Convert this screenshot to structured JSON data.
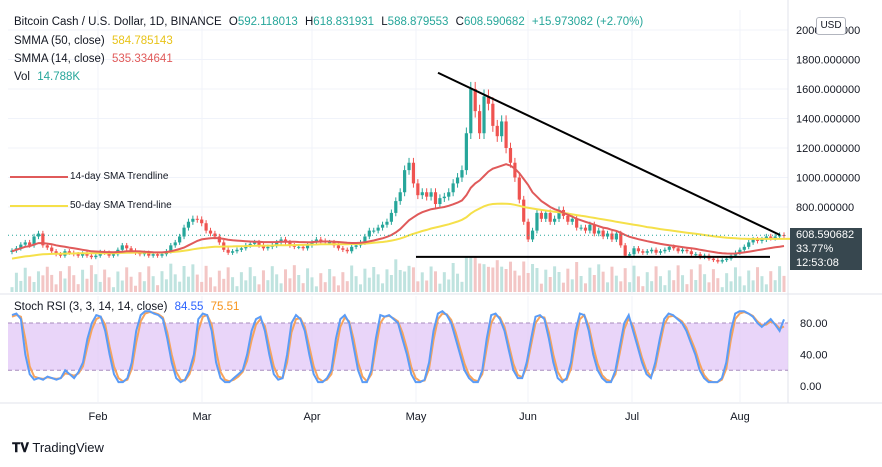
{
  "header": {
    "symbol": "Bitcoin Cash / U.S. Dollar, 1D, BINANCE",
    "o_label": "O",
    "o_value": "592.118013",
    "h_label": "H",
    "h_value": "618.831931",
    "l_label": "L",
    "l_value": "588.879553",
    "c_label": "C",
    "c_value": "608.590682",
    "change": "+15.973082 (+2.70%)",
    "smma50_label": "SMMA (50, close)",
    "smma50_value": "584.785143",
    "smma14_label": "SMMA (14, close)",
    "smma14_value": "535.334641",
    "vol_label": "Vol",
    "vol_value": "14.788K",
    "stoch_label": "Stoch RSI (3, 3, 14, 14, close)",
    "stoch_k": "84.55",
    "stoch_d": "75.51"
  },
  "currency_button": "USD",
  "price_tag": {
    "price": "608.590682",
    "pct": "33.77%",
    "time": "12:53:08"
  },
  "annotations": {
    "sma14": "14-day SMA Trendline",
    "sma50": "50-day SMA Trend-line"
  },
  "branding": {
    "logo_text": "TradingView"
  },
  "colors": {
    "up": "#26a69a",
    "down": "#ef5350",
    "smma14": "#e05a5a",
    "smma50": "#f5e04a",
    "stoch_k": "#5b9cf6",
    "stoch_d": "#f7a35c",
    "stoch_band": "#e1c7f7",
    "tag": "#37474f"
  },
  "chart_data": [
    {
      "type": "candlestick",
      "x_tick_labels": [
        "Feb",
        "Mar",
        "Apr",
        "May",
        "Jun",
        "Jul",
        "Aug"
      ],
      "y_tick_labels": [
        "2000.000000",
        "1800.000000",
        "1600.000000",
        "1400.000000",
        "1200.000000",
        "1000.000000",
        "800.000000"
      ],
      "ylim": [
        350,
        2050
      ],
      "last_price": 608.59,
      "close": [
        505,
        520,
        545,
        560,
        540,
        600,
        620,
        540,
        525,
        500,
        480,
        470,
        500,
        490,
        480,
        470,
        485,
        470,
        460,
        470,
        495,
        490,
        470,
        480,
        510,
        540,
        520,
        505,
        490,
        480,
        490,
        470,
        480,
        470,
        480,
        500,
        540,
        560,
        600,
        660,
        700,
        720,
        715,
        690,
        640,
        620,
        600,
        560,
        510,
        490,
        500,
        510,
        520,
        540,
        550,
        560,
        540,
        520,
        530,
        540,
        560,
        580,
        560,
        540,
        530,
        530,
        520,
        540,
        560,
        580,
        570,
        560,
        560,
        540,
        520,
        510,
        500,
        530,
        540,
        560,
        600,
        640,
        640,
        660,
        680,
        700,
        760,
        840,
        900,
        1050,
        1100,
        960,
        880,
        900,
        870,
        900,
        820,
        860,
        870,
        900,
        960,
        1000,
        1050,
        1300,
        1600,
        1450,
        1300,
        1550,
        1500,
        1350,
        1280,
        1380,
        1200,
        1100,
        1000,
        850,
        700,
        580,
        640,
        760,
        720,
        760,
        700,
        720,
        780,
        740,
        700,
        720,
        660,
        660,
        640,
        680,
        620,
        640,
        600,
        620,
        580,
        620,
        540,
        470,
        480,
        520,
        500,
        490,
        500,
        510,
        490,
        500,
        510,
        530,
        520,
        500,
        510,
        500,
        480,
        480,
        460,
        470,
        450,
        440,
        430,
        440,
        450,
        470,
        490,
        510,
        530,
        560,
        580,
        570,
        580,
        600,
        590,
        600,
        610,
        608.59
      ],
      "smma14": [
        500,
        510,
        520,
        530,
        535,
        545,
        555,
        555,
        552,
        548,
        540,
        535,
        530,
        525,
        520,
        515,
        510,
        505,
        500,
        498,
        496,
        495,
        494,
        493,
        495,
        497,
        500,
        500,
        500,
        499,
        497,
        495,
        493,
        492,
        492,
        495,
        500,
        507,
        515,
        525,
        540,
        555,
        570,
        580,
        585,
        588,
        590,
        588,
        584,
        578,
        574,
        572,
        570,
        568,
        566,
        565,
        564,
        562,
        562,
        562,
        563,
        564,
        565,
        565,
        564,
        563,
        562,
        561,
        562,
        564,
        566,
        566,
        566,
        565,
        563,
        560,
        557,
        556,
        556,
        557,
        561,
        567,
        573,
        580,
        588,
        598,
        610,
        628,
        650,
        680,
        710,
        730,
        750,
        765,
        775,
        785,
        790,
        795,
        800,
        808,
        818,
        830,
        845,
        880,
        930,
        960,
        980,
        1010,
        1040,
        1060,
        1070,
        1080,
        1090,
        1080,
        1060,
        1030,
        990,
        950,
        900,
        870,
        840,
        820,
        800,
        785,
        775,
        760,
        748,
        735,
        720,
        710,
        700,
        690,
        680,
        670,
        660,
        655,
        645,
        638,
        625,
        610,
        598,
        590,
        582,
        575,
        568,
        562,
        556,
        550,
        545,
        540,
        536,
        532,
        528,
        524,
        520,
        516,
        510,
        505,
        500,
        495,
        490,
        487,
        485,
        484,
        485,
        488,
        492,
        497,
        502,
        507,
        512,
        517,
        522,
        527,
        531,
        535.33
      ],
      "smma50": [
        450,
        455,
        460,
        465,
        468,
        472,
        476,
        479,
        481,
        482,
        483,
        483,
        484,
        485,
        485,
        486,
        486,
        486,
        486,
        486,
        486,
        487,
        487,
        487,
        488,
        489,
        490,
        490,
        491,
        491,
        491,
        491,
        491,
        491,
        491,
        492,
        494,
        496,
        499,
        503,
        508,
        513,
        518,
        522,
        525,
        528,
        530,
        531,
        532,
        532,
        533,
        534,
        534,
        535,
        536,
        537,
        537,
        538,
        538,
        539,
        540,
        541,
        541,
        542,
        542,
        543,
        543,
        544,
        545,
        546,
        547,
        547,
        548,
        548,
        548,
        548,
        548,
        549,
        549,
        550,
        552,
        554,
        557,
        560,
        563,
        567,
        572,
        578,
        586,
        596,
        608,
        618,
        628,
        637,
        645,
        654,
        661,
        668,
        675,
        683,
        692,
        702,
        713,
        730,
        755,
        775,
        790,
        805,
        815,
        820,
        822,
        823,
        822,
        820,
        815,
        808,
        800,
        795,
        790,
        785,
        780,
        776,
        772,
        768,
        764,
        760,
        755,
        750,
        745,
        740,
        736,
        731,
        726,
        721,
        716,
        711,
        706,
        700,
        695,
        690,
        685,
        680,
        675,
        670,
        664,
        660,
        655,
        650,
        646,
        642,
        638,
        634,
        630,
        626,
        622,
        618,
        614,
        610,
        606,
        602,
        598,
        595,
        592,
        590,
        588,
        586,
        585,
        584,
        584,
        584,
        584,
        584,
        584,
        584,
        584,
        584,
        584,
        584,
        584,
        584.79
      ],
      "annotations": [
        {
          "label": "descending trendline",
          "from": [
            0.43,
            1710
          ],
          "to": [
            0.99,
            610
          ]
        },
        {
          "label": "horizontal support",
          "value": 462
        }
      ]
    },
    {
      "type": "line",
      "title": "Stoch RSI (3, 3, 14, 14, close)",
      "y_tick_labels": [
        "80.00",
        "40.00",
        "0.00"
      ],
      "ylim": [
        -15,
        100
      ],
      "band": [
        20,
        80
      ],
      "series": [
        {
          "name": "K",
          "values": [
            90,
            92,
            85,
            40,
            15,
            8,
            10,
            8,
            12,
            10,
            8,
            10,
            20,
            15,
            10,
            18,
            30,
            60,
            80,
            90,
            88,
            70,
            40,
            15,
            5,
            5,
            10,
            30,
            70,
            90,
            95,
            95,
            92,
            90,
            85,
            60,
            30,
            10,
            5,
            8,
            20,
            40,
            85,
            92,
            90,
            70,
            30,
            10,
            5,
            5,
            10,
            15,
            20,
            40,
            70,
            85,
            88,
            70,
            40,
            15,
            8,
            10,
            40,
            80,
            90,
            85,
            70,
            40,
            15,
            5,
            5,
            10,
            20,
            60,
            85,
            90,
            80,
            50,
            20,
            5,
            5,
            20,
            60,
            90,
            88,
            90,
            85,
            80,
            60,
            40,
            15,
            5,
            5,
            8,
            30,
            70,
            92,
            95,
            90,
            80,
            60,
            40,
            20,
            10,
            5,
            5,
            20,
            60,
            90,
            92,
            85,
            70,
            45,
            20,
            10,
            10,
            30,
            60,
            88,
            90,
            85,
            60,
            30,
            10,
            5,
            10,
            30,
            70,
            92,
            90,
            70,
            40,
            20,
            10,
            5,
            5,
            20,
            50,
            80,
            90,
            70,
            50,
            30,
            15,
            10,
            30,
            60,
            85,
            92,
            90,
            85,
            80,
            70,
            55,
            40,
            20,
            10,
            5,
            5,
            5,
            10,
            30,
            70,
            92,
            95,
            95,
            92,
            88,
            80,
            75,
            80,
            85,
            78,
            70,
            84.55
          ]
        },
        {
          "name": "D",
          "values": [
            88,
            90,
            88,
            60,
            25,
            12,
            10,
            9,
            11,
            10,
            9,
            10,
            16,
            15,
            13,
            16,
            25,
            50,
            72,
            85,
            88,
            78,
            50,
            25,
            10,
            6,
            8,
            22,
            55,
            82,
            92,
            94,
            93,
            91,
            87,
            68,
            40,
            18,
            8,
            7,
            15,
            32,
            70,
            88,
            90,
            78,
            45,
            18,
            8,
            6,
            8,
            12,
            18,
            32,
            58,
            78,
            85,
            76,
            50,
            25,
            12,
            10,
            30,
            68,
            85,
            86,
            75,
            50,
            25,
            10,
            6,
            8,
            15,
            45,
            75,
            87,
            82,
            60,
            30,
            12,
            6,
            15,
            48,
            80,
            88,
            89,
            86,
            82,
            68,
            48,
            24,
            10,
            6,
            7,
            22,
            58,
            85,
            92,
            91,
            84,
            68,
            48,
            28,
            14,
            8,
            6,
            15,
            48,
            80,
            90,
            87,
            75,
            52,
            28,
            14,
            11,
            24,
            52,
            80,
            88,
            87,
            68,
            40,
            18,
            8,
            8,
            22,
            58,
            85,
            90,
            76,
            50,
            28,
            14,
            8,
            6,
            15,
            42,
            72,
            86,
            76,
            56,
            36,
            20,
            12,
            24,
            52,
            78,
            88,
            89,
            86,
            82,
            74,
            60,
            46,
            28,
            14,
            7,
            5,
            5,
            8,
            22,
            58,
            85,
            92,
            94,
            92,
            89,
            82,
            77,
            78,
            82,
            79,
            73,
            75.51
          ]
        }
      ]
    }
  ]
}
